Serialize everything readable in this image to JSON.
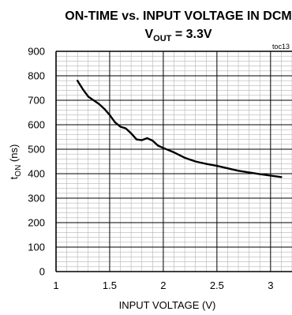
{
  "chart_data": {
    "type": "line",
    "title": "ON-TIME vs. INPUT VOLTAGE IN DCM",
    "subtitle": {
      "prefix": "V",
      "subscript": "OUT",
      "suffix": " = 3.3V"
    },
    "figure_tag": "toc13",
    "xlabel": "INPUT VOLTAGE (V)",
    "ylabel": {
      "prefix": "t",
      "subscript": "ON",
      "suffix": " (ns)"
    },
    "xlim": [
      1,
      3.2
    ],
    "ylim": [
      0,
      900
    ],
    "x_major_ticks": [
      1,
      1.5,
      2,
      2.5,
      3
    ],
    "x_tick_labels": [
      "1",
      "1.5",
      "2",
      "2.5",
      "3"
    ],
    "y_major_ticks": [
      0,
      100,
      200,
      300,
      400,
      500,
      600,
      700,
      800,
      900
    ],
    "y_tick_labels": [
      "0",
      "100",
      "200",
      "300",
      "400",
      "500",
      "600",
      "700",
      "800",
      "900"
    ],
    "grid": true,
    "series": [
      {
        "x": [
          1.2,
          1.25,
          1.3,
          1.35,
          1.4,
          1.45,
          1.5,
          1.55,
          1.6,
          1.65,
          1.7,
          1.75,
          1.8,
          1.85,
          1.9,
          1.95,
          2.0,
          2.1,
          2.2,
          2.3,
          2.4,
          2.5,
          2.6,
          2.7,
          2.8,
          2.9,
          3.0,
          3.1
        ],
        "y": [
          780,
          745,
          715,
          700,
          685,
          665,
          640,
          610,
          592,
          585,
          565,
          540,
          537,
          545,
          535,
          515,
          505,
          487,
          465,
          450,
          440,
          432,
          422,
          412,
          405,
          398,
          392,
          386
        ]
      }
    ]
  }
}
